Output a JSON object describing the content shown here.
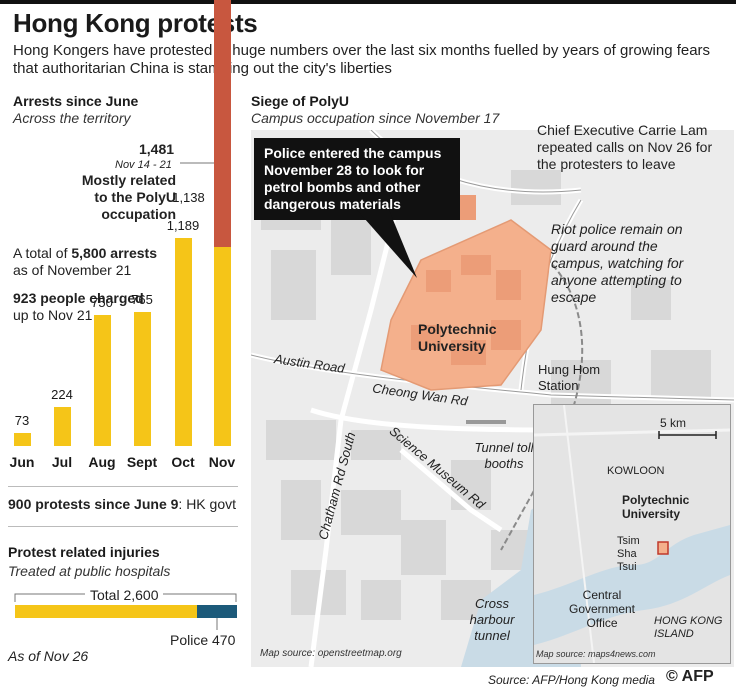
{
  "header": {
    "title": "Hong Kong protests",
    "subtitle": "Hong Kongers have protested in huge numbers over the last six months fuelled by years of growing fears that authoritarian China is stamping out the city's liberties"
  },
  "arrests": {
    "title": "Arrests since June",
    "subtitle": "Across the territory",
    "nov_total": "1,481",
    "nov_range": "Nov 14 - 21",
    "polyu_note": "Mostly related to the PolyU occupation",
    "total_prefix": "A total of",
    "total_value": "5,800 arrests",
    "total_suffix": "as of November 21",
    "charged_value": "923 people charged",
    "charged_suffix": "up to Nov 21"
  },
  "chart_data": {
    "type": "bar",
    "categories": [
      "Jun",
      "Jul",
      "Aug",
      "Sept",
      "Oct",
      "Nov"
    ],
    "series": [
      {
        "values": [
          73,
          224,
          750,
          765,
          1189,
          1138
        ]
      },
      {
        "values": [
          0,
          0,
          0,
          0,
          0,
          1481
        ]
      }
    ],
    "data_labels": [
      "73",
      "224",
      "750",
      "765",
      "1,189",
      "1,138"
    ],
    "colors": {
      "main": "#f5c518",
      "polyu": "#c8573f"
    }
  },
  "protests": {
    "value": "900 protests since June 9",
    "source": ": HK govt"
  },
  "injuries": {
    "title": "Protest related injuries",
    "subtitle": "Treated at public hospitals",
    "total_label": "Total 2,600",
    "police_label": "Police 470",
    "total": 2600,
    "police": 470,
    "date": "As of Nov 26",
    "colors": {
      "total": "#f5c518",
      "police": "#1c5a7a"
    }
  },
  "map": {
    "title": "Siege of PolyU",
    "subtitle": "Campus occupation since November 17",
    "callout": "Police entered the campus November 28 to look for petrol bombs and other dangerous materials",
    "lam_note": "Chief Executive Carrie Lam repeated calls on Nov 26 for the protesters to leave",
    "riot_note": "Riot police remain on guard around the campus, watching for anyone attempting to escape",
    "campus_label": "Polytechnic University",
    "station": "Hung Hom Station",
    "austin": "Austin Road",
    "cheong": "Cheong Wan Rd",
    "chatham": "Chatham Rd South",
    "science": "Science Museum Rd",
    "tunnel_booths": "Tunnel toll booths",
    "harbour": "Cross harbour tunnel",
    "source": "Map source: openstreetmap.org",
    "campus_color": "#f4b08c"
  },
  "inset": {
    "scale": "5 km",
    "kowloon": "KOWLOON",
    "polyu": "Polytechnic University",
    "tst": "Tsim Sha Tsui",
    "central": "Central Government Office",
    "hki": "HONG KONG ISLAND",
    "source": "Map source: maps4news.com"
  },
  "footer": {
    "source": "Source: AFP/Hong Kong media",
    "logo": "© AFP"
  }
}
